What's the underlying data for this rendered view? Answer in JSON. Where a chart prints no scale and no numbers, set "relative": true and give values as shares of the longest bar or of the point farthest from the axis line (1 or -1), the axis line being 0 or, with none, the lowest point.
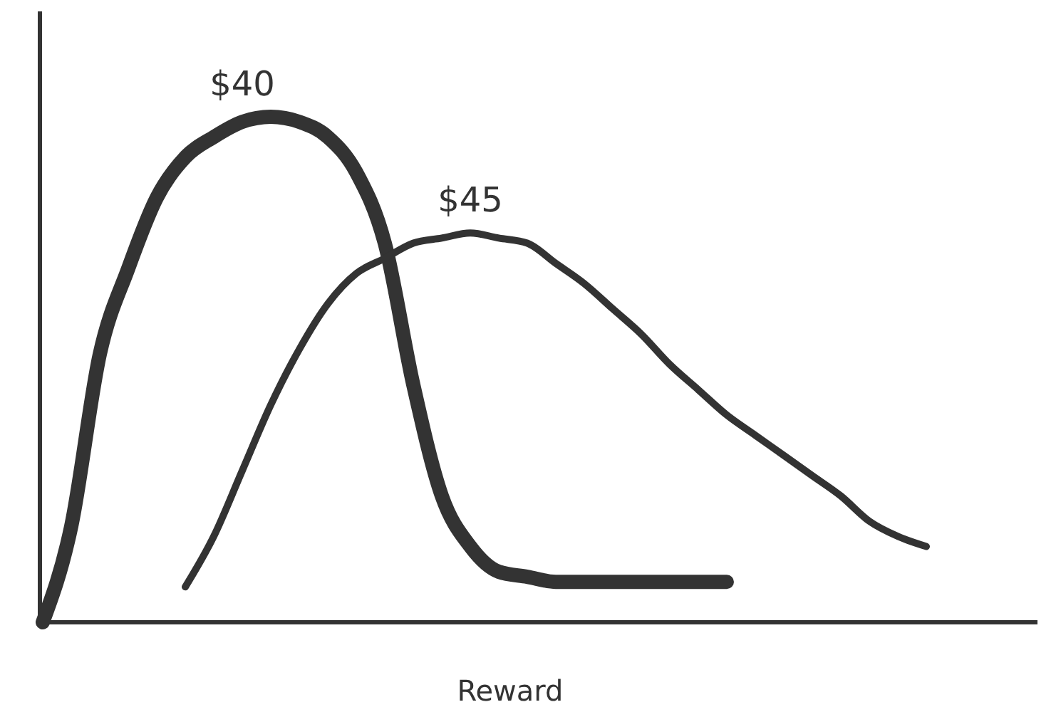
{
  "chart_data": {
    "type": "line",
    "relative": true,
    "xlabel": "Reward",
    "categories": [
      null,
      null,
      null,
      null,
      null,
      null,
      null,
      null,
      null,
      null,
      null,
      null,
      null,
      null,
      null,
      null,
      null,
      null,
      null,
      null,
      null,
      null,
      null,
      null,
      null,
      null,
      null,
      null,
      null,
      null,
      null,
      null,
      null,
      null,
      null
    ],
    "series": [
      {
        "name": "$40",
        "color": "#333333",
        "values": [
          0,
          0.19,
          0.53,
          0.7,
          0.84,
          0.92,
          0.96,
          0.99,
          1,
          0.99,
          0.96,
          0.89,
          0.75,
          0.47,
          0.25,
          0.15,
          0.1,
          0.09,
          0.08,
          0.08,
          0.08,
          0.08,
          0.08,
          0.08,
          0.08,
          null,
          null,
          null,
          null,
          null,
          null,
          null,
          null,
          null,
          null
        ]
      },
      {
        "name": "$45",
        "color": "#333333",
        "values": [
          null,
          null,
          null,
          null,
          null,
          0.07,
          0.17,
          0.3,
          0.43,
          0.54,
          0.63,
          0.69,
          0.72,
          0.75,
          0.76,
          0.77,
          0.76,
          0.75,
          0.71,
          0.67,
          0.62,
          0.57,
          0.51,
          0.46,
          0.41,
          0.37,
          0.33,
          0.29,
          0.25,
          0.2,
          0.17,
          0.15,
          null,
          null,
          null
        ]
      }
    ]
  }
}
